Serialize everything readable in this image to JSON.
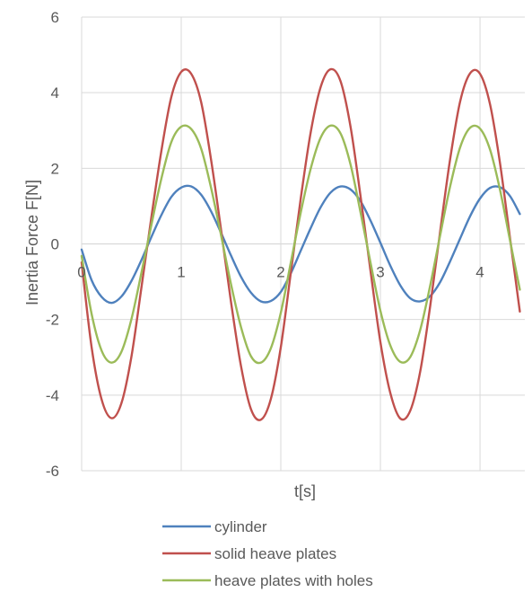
{
  "chart_data": {
    "type": "line",
    "title": "",
    "xlabel": "t[s]",
    "ylabel": "Inertia Force F[N]",
    "xlim": [
      0,
      4.45
    ],
    "ylim": [
      -6,
      6
    ],
    "x_ticks": [
      "0",
      "1",
      "2",
      "3",
      "4"
    ],
    "y_ticks": [
      "6",
      "4",
      "2",
      "0",
      "-2",
      "-4",
      "-6"
    ],
    "grid": true,
    "legend_position": "bottom",
    "series": [
      {
        "name": "cylinder",
        "color": "#4f81bd",
        "x": [
          0.0,
          0.1,
          0.2,
          0.3,
          0.4,
          0.5,
          0.6,
          0.7,
          0.8,
          0.9,
          1.0,
          1.1,
          1.2,
          1.3,
          1.4,
          1.5,
          1.6,
          1.7,
          1.8,
          1.9,
          2.0,
          2.1,
          2.2,
          2.3,
          2.4,
          2.5,
          2.6,
          2.7,
          2.8,
          2.9,
          3.0,
          3.1,
          3.2,
          3.3,
          3.4,
          3.5,
          3.6,
          3.7,
          3.8,
          3.9,
          4.0,
          4.1,
          4.2,
          4.3,
          4.4
        ],
        "values": [
          -0.15,
          -0.96,
          -1.4,
          -1.56,
          -1.39,
          -0.98,
          -0.43,
          0.18,
          0.76,
          1.24,
          1.49,
          1.52,
          1.3,
          0.86,
          0.29,
          -0.31,
          -0.87,
          -1.29,
          -1.52,
          -1.51,
          -1.27,
          -0.78,
          -0.18,
          0.42,
          0.97,
          1.36,
          1.52,
          1.44,
          1.13,
          0.62,
          0.03,
          -0.58,
          -1.1,
          -1.44,
          -1.52,
          -1.38,
          -1.01,
          -0.46,
          0.14,
          0.73,
          1.2,
          1.48,
          1.5,
          1.27,
          0.79
        ]
      },
      {
        "name": "solid heave plates",
        "color": "#c0504d",
        "x": [
          0.0,
          0.1,
          0.2,
          0.3,
          0.4,
          0.5,
          0.6,
          0.7,
          0.8,
          0.9,
          1.0,
          1.1,
          1.2,
          1.3,
          1.4,
          1.5,
          1.6,
          1.7,
          1.8,
          1.9,
          2.0,
          2.1,
          2.2,
          2.3,
          2.4,
          2.5,
          2.6,
          2.7,
          2.8,
          2.9,
          3.0,
          3.1,
          3.2,
          3.3,
          3.4,
          3.5,
          3.6,
          3.7,
          3.8,
          3.9,
          4.0,
          4.1,
          4.2,
          4.3,
          4.4
        ],
        "values": [
          -0.49,
          -2.73,
          -4.11,
          -4.61,
          -4.21,
          -2.98,
          -1.16,
          0.7,
          2.45,
          3.88,
          4.55,
          4.5,
          3.75,
          2.22,
          0.37,
          -1.54,
          -3.23,
          -4.37,
          -4.65,
          -4.1,
          -2.73,
          -0.77,
          1.2,
          2.95,
          4.15,
          4.62,
          4.3,
          3.1,
          1.27,
          -0.7,
          -2.6,
          -3.95,
          -4.62,
          -4.41,
          -3.37,
          -1.64,
          0.33,
          2.24,
          3.76,
          4.51,
          4.5,
          3.7,
          2.15,
          0.18,
          -1.79
        ]
      },
      {
        "name": "heave plates with holes",
        "color": "#9bbb59",
        "x": [
          0.0,
          0.1,
          0.2,
          0.3,
          0.4,
          0.5,
          0.6,
          0.7,
          0.8,
          0.9,
          1.0,
          1.1,
          1.2,
          1.3,
          1.4,
          1.5,
          1.6,
          1.7,
          1.8,
          1.9,
          2.0,
          2.1,
          2.2,
          2.3,
          2.4,
          2.5,
          2.6,
          2.7,
          2.8,
          2.9,
          3.0,
          3.1,
          3.2,
          3.3,
          3.4,
          3.5,
          3.6,
          3.7,
          3.8,
          3.9,
          4.0,
          4.1,
          4.2,
          4.3,
          4.4
        ],
        "values": [
          -0.32,
          -1.85,
          -2.82,
          -3.14,
          -2.85,
          -1.99,
          -0.77,
          0.5,
          1.72,
          2.69,
          3.1,
          3.04,
          2.52,
          1.48,
          0.23,
          -1.07,
          -2.2,
          -2.97,
          -3.14,
          -2.76,
          -1.82,
          -0.5,
          0.83,
          1.99,
          2.81,
          3.13,
          2.92,
          2.1,
          0.84,
          -0.49,
          -1.77,
          -2.69,
          -3.12,
          -2.99,
          -2.27,
          -1.1,
          0.23,
          1.52,
          2.55,
          3.07,
          3.05,
          2.5,
          1.44,
          0.11,
          -1.21
        ]
      }
    ]
  }
}
